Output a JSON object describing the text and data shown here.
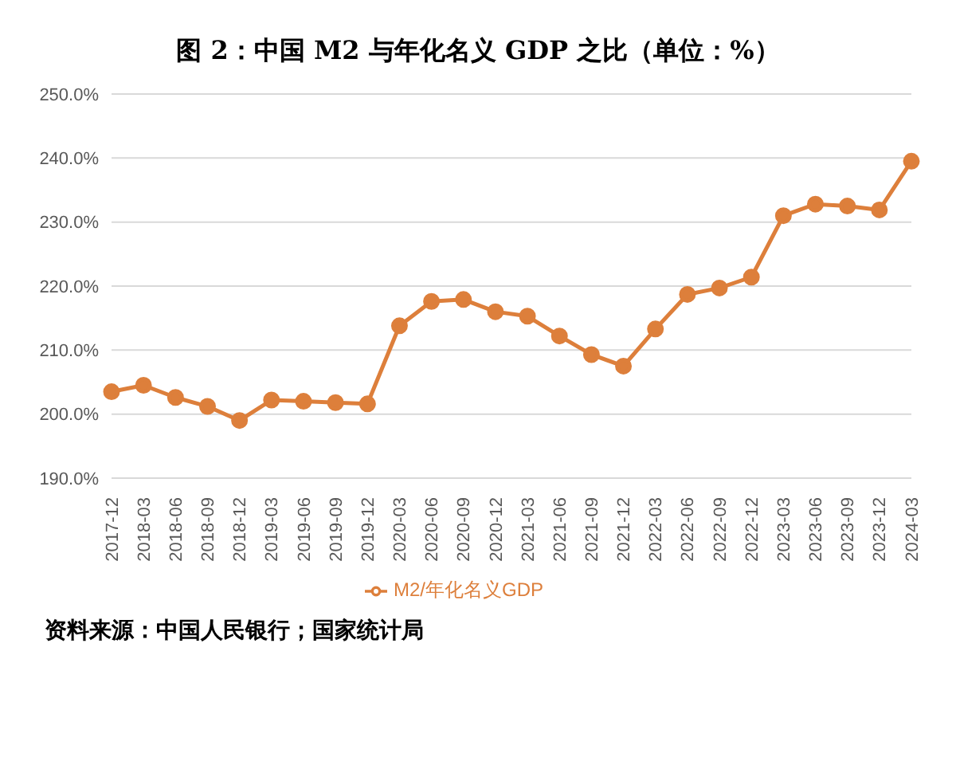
{
  "chart_data": {
    "type": "line",
    "title": "图 2：中国 M2 与年化名义 GDP 之比（单位：%）",
    "categories": [
      "2017-12",
      "2018-03",
      "2018-06",
      "2018-09",
      "2018-12",
      "2019-03",
      "2019-06",
      "2019-09",
      "2019-12",
      "2020-03",
      "2020-06",
      "2020-09",
      "2020-12",
      "2021-03",
      "2021-06",
      "2021-09",
      "2021-12",
      "2022-03",
      "2022-06",
      "2022-09",
      "2022-12",
      "2023-03",
      "2023-06",
      "2023-09",
      "2023-12",
      "2024-03"
    ],
    "series": [
      {
        "name": "M2/年化名义GDP",
        "color": "#dd7f3b",
        "values": [
          203.5,
          204.5,
          202.6,
          201.2,
          199.0,
          202.2,
          202.0,
          201.8,
          201.6,
          213.8,
          217.6,
          217.9,
          216.0,
          215.3,
          212.2,
          209.3,
          207.5,
          213.3,
          218.7,
          219.7,
          221.4,
          231.0,
          232.8,
          232.5,
          231.9,
          239.5
        ]
      }
    ],
    "ylim": [
      190,
      250
    ],
    "yticks": [
      {
        "value": 190,
        "label": "190.0%"
      },
      {
        "value": 200,
        "label": "200.0%"
      },
      {
        "value": 210,
        "label": "210.0%"
      },
      {
        "value": 220,
        "label": "220.0%"
      },
      {
        "value": 230,
        "label": "230.0%"
      },
      {
        "value": 240,
        "label": "240.0%"
      },
      {
        "value": 250,
        "label": "250.0%"
      }
    ],
    "grid": "y",
    "legend": "bottom",
    "marker": "circle",
    "line_style": "solid",
    "annotations": [
      "资料来源：中国人民银行；国家统计局"
    ]
  }
}
